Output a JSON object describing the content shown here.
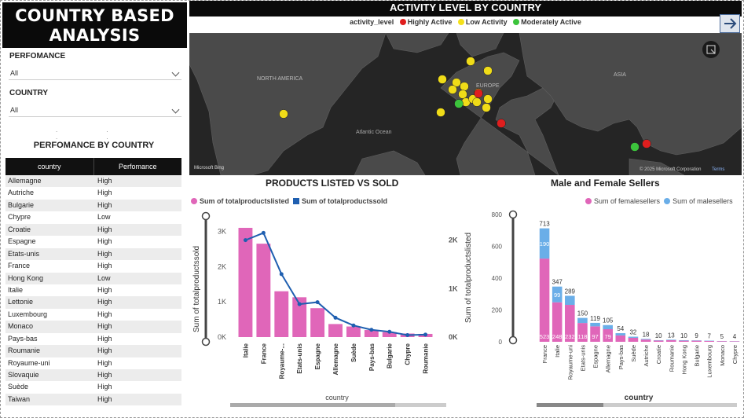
{
  "left": {
    "title_line1": "COUNTRY BASED",
    "title_line2": "ANALYSIS",
    "slicers": [
      {
        "label": "PERFOMANCE",
        "value": "All"
      },
      {
        "label": "COUNTRY",
        "value": "All"
      }
    ],
    "table_title": "PERFOMANCE BY COUNTRY",
    "table_headers": [
      "country",
      "Perfomance"
    ],
    "table_rows": [
      [
        "Allemagne",
        "High"
      ],
      [
        "Autriche",
        "High"
      ],
      [
        "Bulgarie",
        "High"
      ],
      [
        "Chypre",
        "Low"
      ],
      [
        "Croatie",
        "High"
      ],
      [
        "Espagne",
        "High"
      ],
      [
        "Etats-unis",
        "High"
      ],
      [
        "France",
        "High"
      ],
      [
        "Hong Kong",
        "Low"
      ],
      [
        "Italie",
        "High"
      ],
      [
        "Lettonie",
        "High"
      ],
      [
        "Luxembourg",
        "High"
      ],
      [
        "Monaco",
        "High"
      ],
      [
        "Pays-bas",
        "High"
      ],
      [
        "Roumanie",
        "High"
      ],
      [
        "Royaume-uni",
        "High"
      ],
      [
        "Slovaquie",
        "High"
      ],
      [
        "Suède",
        "High"
      ],
      [
        "Taiwan",
        "High"
      ]
    ]
  },
  "map": {
    "title": "ACTIVITY LEVEL BY COUNTRY",
    "legend_title": "activity_level",
    "legend": [
      {
        "label": "Highly Active",
        "color": "#e01e1e"
      },
      {
        "label": "Low Activity",
        "color": "#f5e11a"
      },
      {
        "label": "Moderately Active",
        "color": "#3cc43c"
      }
    ],
    "labels": {
      "na": "NORTH AMERICA",
      "europe": "EUROPE",
      "asia": "ASIA",
      "atlantic": "Atlantic Ocean"
    },
    "attribution": "© 2025 Microsoft Corporation",
    "terms": "Terms",
    "bing": "Microsoft Bing"
  },
  "chart_data": [
    {
      "type": "bar",
      "title": "PRODUCTS LISTED VS SOLD",
      "xlabel": "country",
      "ylabel": "Sum of totalproductssold",
      "y2label": "Sum of totalproductslisted",
      "series_names": [
        "Sum of totalproductslisted",
        "Sum of totalproductssold"
      ],
      "categories": [
        "Italie",
        "France",
        "Royaume-...",
        "Etats-unis",
        "Espagne",
        "Allemagne",
        "Suède",
        "Pays-bas",
        "Bulgarie",
        "Chypre",
        "Roumanie"
      ],
      "bars_sold": [
        3100,
        2650,
        1300,
        1130,
        820,
        370,
        300,
        200,
        140,
        100,
        90
      ],
      "line_listed": [
        2000,
        2150,
        1300,
        680,
        720,
        400,
        240,
        150,
        110,
        40,
        50
      ],
      "ylim": [
        0,
        3300
      ],
      "y_ticks": [
        "0K",
        "1K",
        "2K",
        "3K"
      ],
      "y2_ticks": [
        "0K",
        "1K",
        "2K"
      ],
      "colors": {
        "bar": "#e066b9",
        "line": "#1f5fb0"
      }
    },
    {
      "type": "stacked-bar",
      "title": "Male and Female Sellers",
      "xlabel": "country",
      "series_names": [
        "Sum of femalesellers",
        "Sum of malesellers"
      ],
      "categories": [
        "France",
        "Italie",
        "Royaume-uni",
        "Etats-unis",
        "Espagne",
        "Allemagne",
        "Pays-bas",
        "Suède",
        "Autriche",
        "Croatie",
        "Roumanie",
        "Hong Kong",
        "Bulgarie",
        "Luxembourg",
        "Monaco",
        "Chypre"
      ],
      "female": [
        523,
        248,
        232,
        118,
        97,
        79,
        40,
        25,
        14,
        8,
        10,
        7,
        7,
        5,
        4,
        3
      ],
      "male": [
        190,
        99,
        57,
        32,
        22,
        26,
        14,
        7,
        4,
        2,
        3,
        3,
        2,
        2,
        1,
        1
      ],
      "totals": [
        713,
        347,
        289,
        150,
        119,
        105,
        54,
        32,
        18,
        10,
        13,
        10,
        9,
        7,
        5,
        4
      ],
      "female_labels": [
        "523",
        "248",
        "232",
        "118",
        "97",
        "79"
      ],
      "male_labels": [
        "190",
        "99"
      ],
      "y_ticks": [
        "0",
        "200",
        "400",
        "600",
        "800"
      ],
      "ylim": [
        0,
        800
      ],
      "colors": {
        "female": "#e066b9",
        "male": "#6aaee8"
      }
    }
  ]
}
